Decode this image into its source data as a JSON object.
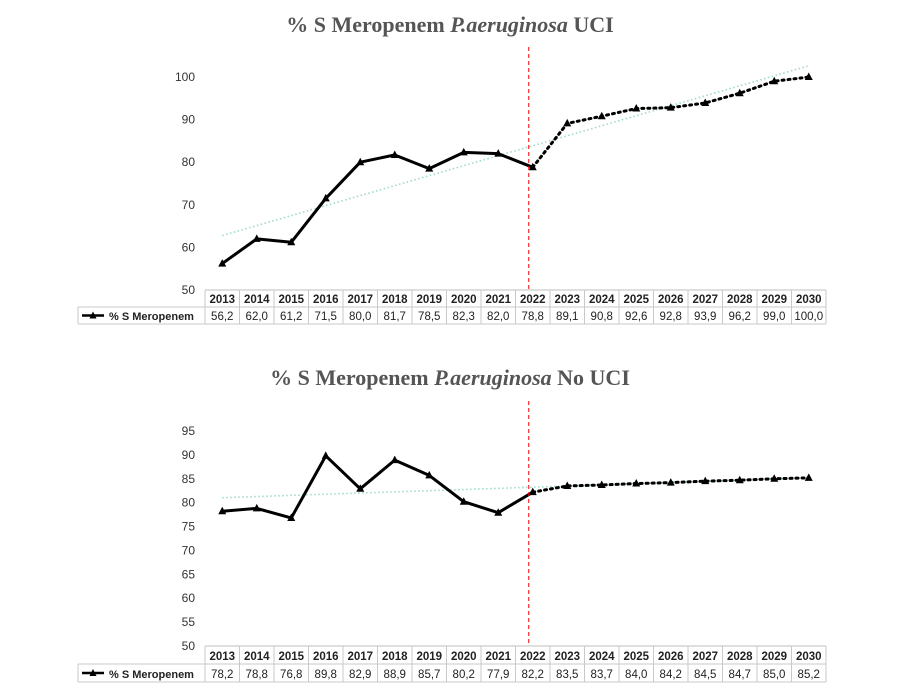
{
  "chart_data": [
    {
      "type": "line",
      "title_parts": [
        "% S Meropenem ",
        "P.aeruginosa",
        " UCI"
      ],
      "categories": [
        "2013",
        "2014",
        "2015",
        "2016",
        "2017",
        "2018",
        "2019",
        "2020",
        "2021",
        "2022",
        "2023",
        "2024",
        "2025",
        "2026",
        "2027",
        "2028",
        "2029",
        "2030"
      ],
      "series": [
        {
          "name": "% S Meropenem",
          "values": [
            56.2,
            62.0,
            61.2,
            71.5,
            80.0,
            81.7,
            78.5,
            82.3,
            82.0,
            78.8,
            89.1,
            90.8,
            92.6,
            92.8,
            93.9,
            96.2,
            99.0,
            100.0
          ],
          "labels": [
            "56,2",
            "62,0",
            "61,2",
            "71,5",
            "80,0",
            "81,7",
            "78,5",
            "82,3",
            "82,0",
            "78,8",
            "89,1",
            "90,8",
            "92,6",
            "92,8",
            "93,9",
            "96,2",
            "99,0",
            "100,0"
          ],
          "observed_until": "2022",
          "marker": "triangle",
          "color": "#000000"
        }
      ],
      "trendline": {
        "type": "linear",
        "color": "#9fd9c9",
        "style": "dotted"
      },
      "vertical_line": {
        "at": "2022",
        "color": "#ff0000",
        "style": "dashed"
      },
      "ylim": [
        50,
        100
      ],
      "yticks": [
        50,
        60,
        70,
        80,
        90,
        100
      ],
      "data_table": true,
      "legend": "data-table"
    },
    {
      "type": "line",
      "title_parts": [
        "% S Meropenem ",
        "P.aeruginosa",
        " No  UCI"
      ],
      "categories": [
        "2013",
        "2014",
        "2015",
        "2016",
        "2017",
        "2018",
        "2019",
        "2020",
        "2021",
        "2022",
        "2023",
        "2024",
        "2025",
        "2026",
        "2027",
        "2028",
        "2029",
        "2030"
      ],
      "series": [
        {
          "name": "% S Meropenem",
          "values": [
            78.2,
            78.8,
            76.8,
            89.8,
            82.9,
            88.9,
            85.7,
            80.2,
            77.9,
            82.2,
            83.5,
            83.7,
            84.0,
            84.2,
            84.5,
            84.7,
            85.0,
            85.2
          ],
          "labels": [
            "78,2",
            "78,8",
            "76,8",
            "89,8",
            "82,9",
            "88,9",
            "85,7",
            "80,2",
            "77,9",
            "82,2",
            "83,5",
            "83,7",
            "84,0",
            "84,2",
            "84,5",
            "84,7",
            "85,0",
            "85,2"
          ],
          "observed_until": "2022",
          "marker": "triangle",
          "color": "#000000"
        }
      ],
      "trendline": {
        "type": "linear",
        "color": "#9fd9c9",
        "style": "dotted"
      },
      "vertical_line": {
        "at": "2022",
        "color": "#ff0000",
        "style": "dashed"
      },
      "ylim": [
        50,
        95
      ],
      "yticks": [
        50,
        55,
        60,
        65,
        70,
        75,
        80,
        85,
        90,
        95
      ],
      "data_table": true,
      "legend": "data-table"
    }
  ]
}
